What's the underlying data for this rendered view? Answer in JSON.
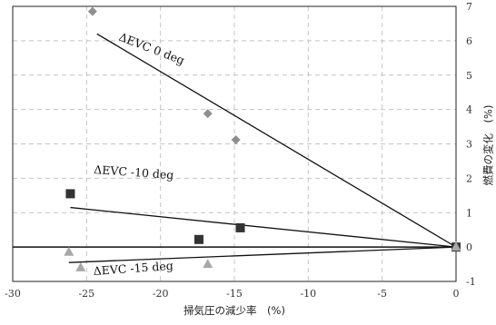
{
  "chart_data": {
    "type": "scatter",
    "xlabel": "掃気圧の減少率　(%)",
    "ylabel": "燃費の変化　(%)",
    "xlim": [
      -30,
      0
    ],
    "ylim": [
      -1,
      7
    ],
    "x_ticks": [
      -30,
      -25,
      -20,
      -15,
      -10,
      -5,
      0
    ],
    "y_ticks": [
      -1,
      0,
      1,
      2,
      3,
      4,
      5,
      6,
      7
    ],
    "x_tick_labels": [
      "-30",
      "-25",
      "-20",
      "-15",
      "-10",
      "-5",
      "0"
    ],
    "y_tick_labels": [
      "-1",
      "0",
      "1",
      "2",
      "3",
      "4",
      "5",
      "6",
      "7"
    ],
    "grid": true,
    "y_axis_side": "right",
    "series": [
      {
        "name": "ΔEVC 0 deg",
        "marker": "diamond",
        "color": "#8f8f8f",
        "points": [
          [
            -24.6,
            6.85
          ],
          [
            -16.8,
            3.88
          ],
          [
            -14.9,
            3.12
          ],
          [
            0,
            0
          ]
        ],
        "fit": [
          [
            -24.3,
            6.2
          ],
          [
            0,
            0
          ]
        ]
      },
      {
        "name": "ΔEVC -10 deg",
        "marker": "square",
        "color": "#333333",
        "points": [
          [
            -26.1,
            1.55
          ],
          [
            -17.4,
            0.22
          ],
          [
            -14.6,
            0.56
          ],
          [
            0,
            0
          ]
        ],
        "fit": [
          [
            -26.1,
            1.15
          ],
          [
            0,
            0
          ]
        ]
      },
      {
        "name": "ΔEVC -15 deg",
        "marker": "triangle",
        "color": "#a8a8a8",
        "points": [
          [
            -26.2,
            -0.15
          ],
          [
            -25.4,
            -0.6
          ],
          [
            -16.8,
            -0.5
          ],
          [
            0,
            0
          ]
        ],
        "fit": [
          [
            -26.2,
            -0.45
          ],
          [
            0,
            0
          ]
        ]
      }
    ],
    "annotations": [
      {
        "text": "ΔEVC 0 deg",
        "series": 0
      },
      {
        "text": "ΔEVC -10 deg",
        "series": 1
      },
      {
        "text": "ΔEVC -15 deg",
        "series": 2
      }
    ]
  }
}
